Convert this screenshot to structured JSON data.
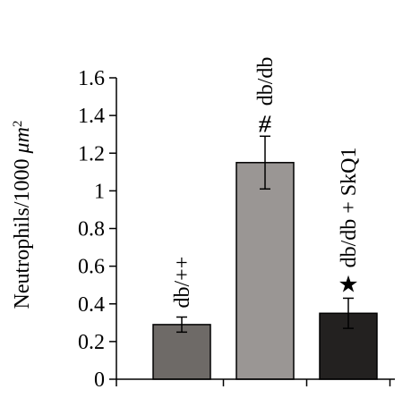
{
  "chart_data": {
    "type": "bar",
    "ylabel": "Neutrophils/1000",
    "ylabel_unit": "μm",
    "ylabel_exponent": "2",
    "ylim": [
      0,
      1.6
    ],
    "yticks": [
      "0",
      "0.2",
      "0.4",
      "0.6",
      "0.8",
      "1",
      "1.2",
      "1.4",
      "1.6"
    ],
    "bars": [
      {
        "label": "db/++",
        "value": 0.29,
        "error": 0.04,
        "color": "#6e6a67",
        "marker": ""
      },
      {
        "label": "db/db",
        "value": 1.15,
        "error": 0.14,
        "color": "#9a9694",
        "marker": "⧣"
      },
      {
        "label": "db/db + SkQ1",
        "value": 0.35,
        "error": 0.08,
        "color": "#232120",
        "marker": "★"
      }
    ]
  }
}
